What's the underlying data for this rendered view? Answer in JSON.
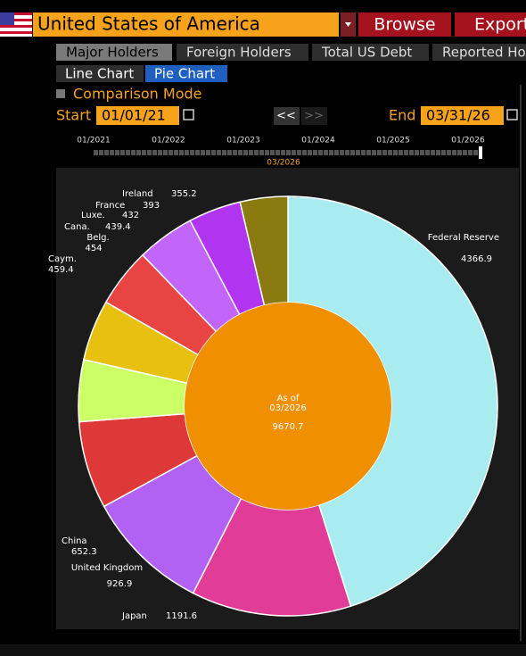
{
  "header": {
    "country": "United States of America",
    "browse": "Browse",
    "export": "Export"
  },
  "tabs": [
    "Major Holders",
    "Foreign Holders",
    "Total US Debt",
    "Reported Hol"
  ],
  "view_tabs": [
    "Line Chart",
    "Pie Chart"
  ],
  "comparison_mode": "Comparison Mode",
  "range": {
    "start_label": "Start",
    "start_date": "01/01/21",
    "end_label": "End",
    "end_date": "03/31/26",
    "prev": "<<",
    "next": ">>"
  },
  "timeline": {
    "ticks": [
      "01/2021",
      "01/2022",
      "01/2023",
      "01/2024",
      "01/2025",
      "01/2026"
    ],
    "current": "03/2026"
  },
  "chart_data": {
    "type": "pie",
    "categories": [
      "Federal Reserve",
      "Japan",
      "United Kingdom",
      "China",
      "Caym.",
      "Belg.",
      "Cana.",
      "Luxe.",
      "France",
      "Ireland"
    ],
    "values": [
      4366.9,
      1191.6,
      926.9,
      652.3,
      459.4,
      454.0,
      439.4,
      432.0,
      393.0,
      355.2
    ],
    "colors": [
      "#a8ecf0",
      "#e03c98",
      "#b262f2",
      "#de3838",
      "#ccff66",
      "#e8c010",
      "#e84444",
      "#c266fa",
      "#b034f0",
      "#8a7a10"
    ],
    "center": {
      "label": "As of",
      "date": "03/2026",
      "total": 9670.7
    }
  }
}
